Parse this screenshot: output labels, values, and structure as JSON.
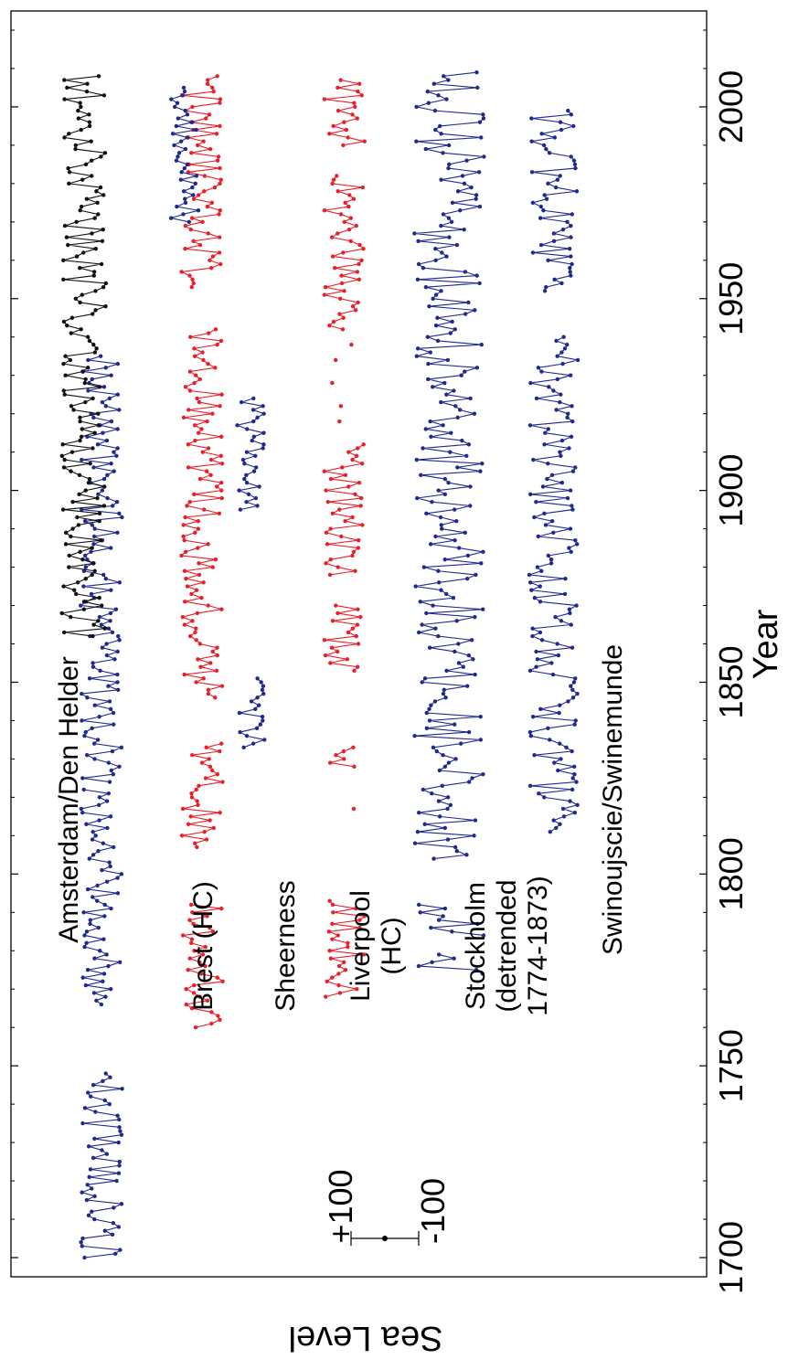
{
  "chart_data": {
    "type": "line",
    "xlabel": "Year",
    "ylabel": "Sea Level",
    "xlim": [
      1695,
      2025
    ],
    "x_ticks": [
      1700,
      1750,
      1800,
      1850,
      1900,
      1950,
      2000
    ],
    "scale_bar": {
      "top_label": "+100",
      "bottom_label": "-100"
    },
    "colors": {
      "blue": "#1f2a8f",
      "red": "#e8202a",
      "black": "#111111",
      "axis": "#000000"
    },
    "series": [
      {
        "name": "Amsterdam/Den Helder",
        "label_lines": [
          "Amsterdam/Den Helder"
        ],
        "color": "blue",
        "level": 0.13,
        "amplitude": 0.03,
        "segments": [
          [
            1700,
            1748
          ],
          [
            1766,
            1822
          ],
          [
            1824,
            1862
          ],
          [
            1862,
            1935
          ]
        ],
        "modern": {
          "color": "black",
          "segments": [
            [
              1862,
              2008
            ]
          ],
          "amplitude": 0.032,
          "level": 0.105
        }
      },
      {
        "name": "Brest (HC)",
        "label_lines": [
          "Brest (HC)"
        ],
        "color": "red",
        "level": 0.275,
        "amplitude": 0.03,
        "segments": [
          [
            1760,
            1792
          ],
          [
            1807,
            1834
          ],
          [
            1846,
            1942
          ],
          [
            1953,
            2008
          ]
        ]
      },
      {
        "name": "Sheerness",
        "label_lines": [
          "Sheerness"
        ],
        "color": "blue",
        "level": 0.345,
        "amplitude": 0.02,
        "segments": [
          [
            1833,
            1851
          ],
          [
            1895,
            1924
          ],
          [
            1970,
            2005
          ]
        ],
        "extra_level": 0.25
      },
      {
        "name": "Liverpool (HC)",
        "label_lines": [
          "Liverpool",
          "(HC)"
        ],
        "color": "red",
        "level": 0.48,
        "amplitude": 0.03,
        "segments": [
          [
            1768,
            1793
          ],
          [
            1828,
            1833
          ],
          [
            1853,
            1870
          ],
          [
            1878,
            1912
          ],
          [
            1942,
            1982
          ],
          [
            1990,
            2007
          ]
        ],
        "points_only": [
          1817,
          1918,
          1922,
          1928,
          1934,
          1938
        ]
      },
      {
        "name": "Stockholm (detrended 1774-1873)",
        "label_lines": [
          "Stockholm",
          "(detrended",
          "1774-1873)"
        ],
        "color": "blue",
        "level": 0.63,
        "amplitude": 0.05,
        "segments": [
          [
            1774,
            1779
          ],
          [
            1784,
            1792
          ],
          [
            1804,
            2009
          ]
        ]
      },
      {
        "name": "Swinoujscie/Swinemunde",
        "label_lines": [
          "Swinoujscie/Swinemunde"
        ],
        "color": "blue",
        "level": 0.78,
        "amplitude": 0.035,
        "segments": [
          [
            1811,
            1940
          ],
          [
            1952,
            1999
          ]
        ]
      }
    ]
  }
}
